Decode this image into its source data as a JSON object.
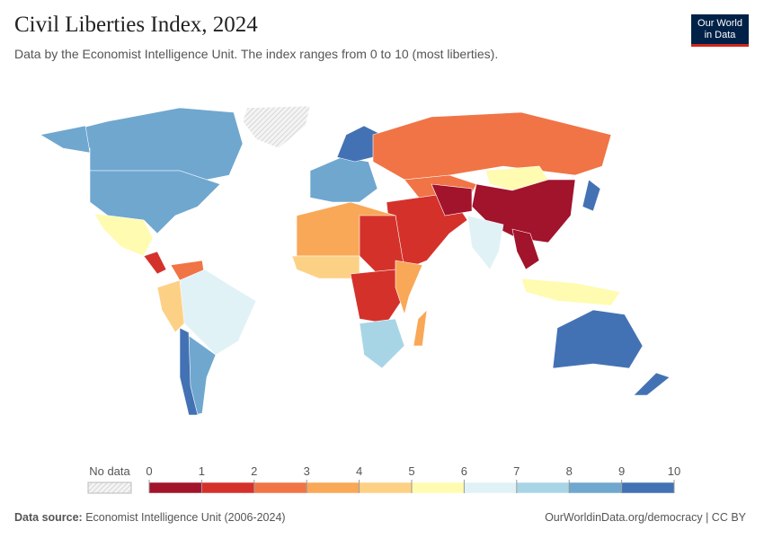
{
  "header": {
    "title": "Civil Liberties Index, 2024",
    "subtitle": "Data by the Economist Intelligence Unit. The index ranges from 0 to 10 (most liberties).",
    "logo": [
      "Our World",
      "in Data"
    ]
  },
  "legend": {
    "no_data_label": "No data",
    "ticks": [
      0,
      1,
      2,
      3,
      4,
      5,
      6,
      7,
      8,
      9,
      10
    ],
    "colors": [
      "#a2132c",
      "#d5312b",
      "#f07446",
      "#f9a857",
      "#fdd185",
      "#fffbb0",
      "#e0f2f6",
      "#a8d5e6",
      "#6fa7cf",
      "#4372b4"
    ]
  },
  "footer": {
    "source_label": "Data source:",
    "source": "Economist Intelligence Unit (2006-2024)",
    "link": "OurWorldinData.org/democracy | CC BY"
  }
}
